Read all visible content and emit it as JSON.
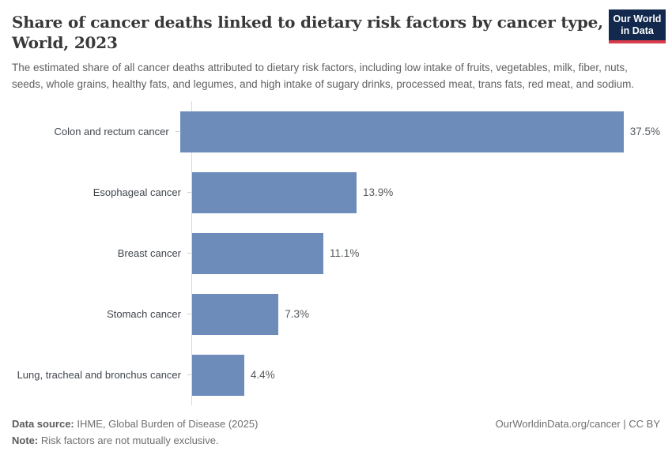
{
  "header": {
    "title": "Share of cancer deaths linked to dietary risk factors by cancer type, World, 2023",
    "subtitle": "The estimated share of all cancer deaths attributed to dietary risk factors, including low intake of fruits, vegetables, milk, fiber, nuts, seeds, whole grains, healthy fats, and legumes, and high intake of sugary drinks, processed meat, trans fats, red meat, and sodium.",
    "logo": {
      "line1": "Our World",
      "line2": "in Data"
    }
  },
  "chart_data": {
    "type": "bar",
    "orientation": "horizontal",
    "categories": [
      "Colon and rectum cancer",
      "Esophageal cancer",
      "Breast cancer",
      "Stomach cancer",
      "Lung, tracheal and bronchus cancer"
    ],
    "values": [
      37.5,
      13.9,
      11.1,
      7.3,
      4.4
    ],
    "value_labels": [
      "37.5%",
      "13.9%",
      "11.1%",
      "7.3%",
      "4.4%"
    ],
    "unit": "%",
    "xlim": [
      0,
      40
    ],
    "grid": false,
    "legend": "none",
    "bar_color": "#6d8cba"
  },
  "footer": {
    "data_source_label": "Data source:",
    "data_source_text": "IHME, Global Burden of Disease (2025)",
    "note_label": "Note:",
    "note_text": "Risk factors are not mutually exclusive.",
    "link": "OurWorldinData.org/cancer | CC BY"
  },
  "colors": {
    "bar": "#6d8cba",
    "axis_line": "#d9d9d9",
    "title_text": "#383838",
    "subtitle_text": "#616161",
    "category_label_text": "#40464d",
    "value_label_text": "#565a5e",
    "footer_text": "#6e6e6e",
    "logo_background": "#12294d",
    "logo_accent": "#d93b4b"
  }
}
